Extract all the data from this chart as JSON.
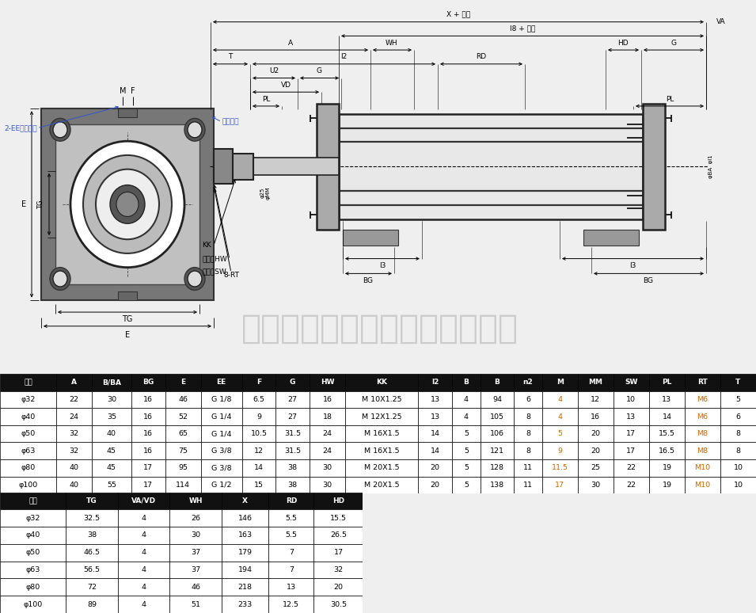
{
  "bg_color": "#efefef",
  "header1": [
    "缸径",
    "A",
    "B/BA",
    "BG",
    "E",
    "EE",
    "F",
    "G",
    "HW",
    "KK",
    "l2",
    "B",
    "B",
    "n2",
    "M",
    "MM",
    "SW",
    "PL",
    "RT",
    "T"
  ],
  "rows1": [
    [
      "φ32",
      "22",
      "30",
      "16",
      "46",
      "G 1/8",
      "6.5",
      "27",
      "16",
      "M 10X1.25",
      "13",
      "4",
      "94",
      "6",
      "4",
      "12",
      "10",
      "13",
      "M6",
      "5"
    ],
    [
      "φ40",
      "24",
      "35",
      "16",
      "52",
      "G 1/4",
      "9",
      "27",
      "18",
      "M 12X1.25",
      "13",
      "4",
      "105",
      "8",
      "4",
      "16",
      "13",
      "14",
      "M6",
      "6"
    ],
    [
      "φ50",
      "32",
      "40",
      "16",
      "65",
      "G 1/4",
      "10.5",
      "31.5",
      "24",
      "M 16X1.5",
      "14",
      "5",
      "106",
      "8",
      "5",
      "20",
      "17",
      "15.5",
      "M8",
      "8"
    ],
    [
      "φ63",
      "32",
      "45",
      "16",
      "75",
      "G 3/8",
      "12",
      "31.5",
      "24",
      "M 16X1.5",
      "14",
      "5",
      "121",
      "8",
      "9",
      "20",
      "17",
      "16.5",
      "M8",
      "8"
    ],
    [
      "φ80",
      "40",
      "45",
      "17",
      "95",
      "G 3/8",
      "14",
      "38",
      "30",
      "M 20X1.5",
      "20",
      "5",
      "128",
      "11",
      "11.5",
      "25",
      "22",
      "19",
      "M10",
      "10"
    ],
    [
      "φ100",
      "40",
      "55",
      "17",
      "114",
      "G 1/2",
      "15",
      "38",
      "30",
      "M 20X1.5",
      "20",
      "5",
      "138",
      "11",
      "17",
      "30",
      "22",
      "19",
      "M10",
      "10"
    ]
  ],
  "header2": [
    "缸径",
    "TG",
    "VA/VD",
    "WH",
    "X",
    "RD",
    "HD"
  ],
  "rows2": [
    [
      "φ32",
      "32.5",
      "4",
      "26",
      "146",
      "5.5",
      "15.5"
    ],
    [
      "φ40",
      "38",
      "4",
      "30",
      "163",
      "5.5",
      "26.5"
    ],
    [
      "φ50",
      "46.5",
      "4",
      "37",
      "179",
      "7",
      "17"
    ],
    [
      "φ63",
      "56.5",
      "4",
      "37",
      "194",
      "7",
      "32"
    ],
    [
      "φ80",
      "72",
      "4",
      "46",
      "218",
      "13",
      "20"
    ],
    [
      "φ100",
      "89",
      "4",
      "51",
      "233",
      "12.5",
      "30.5"
    ]
  ],
  "header_bg": "#111111",
  "header_fg": "#ffffff",
  "row_bg": "#ffffff",
  "row_fg": "#000000",
  "highlight_col_color": "#cc6600",
  "highlight_cols1_data": [
    14,
    18
  ],
  "watermark": "佛山市景越自动化设备有限公司",
  "label_2ee": "2-EE（气口）",
  "label_cushion": "缓冲针阀",
  "label_hw": "二面幅HW",
  "label_sw": "二面幅SW"
}
